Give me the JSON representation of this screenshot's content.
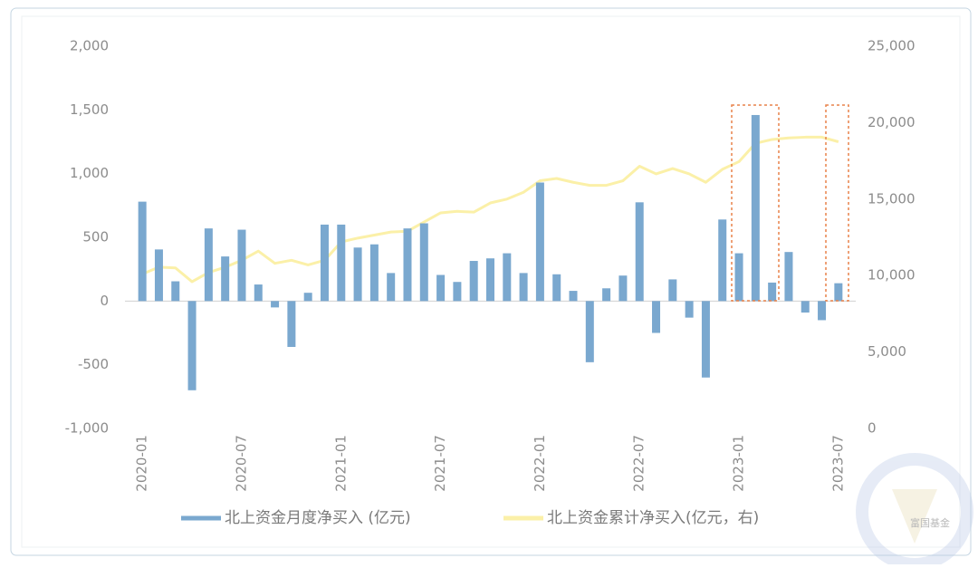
{
  "chart_data": {
    "type": "bar-line",
    "categories": [
      "2020-01",
      null,
      null,
      null,
      null,
      null,
      "2020-07",
      null,
      null,
      null,
      null,
      null,
      "2021-01",
      null,
      null,
      null,
      null,
      null,
      "2021-07",
      null,
      null,
      null,
      null,
      null,
      "2022-01",
      null,
      null,
      null,
      null,
      null,
      "2022-07",
      null,
      null,
      null,
      null,
      null,
      "2023-01",
      null,
      null,
      null,
      null,
      null,
      "2023-07"
    ],
    "series": [
      {
        "name": "北上资金月度净买入 (亿元)",
        "type": "bar",
        "color": "#7aa8cf",
        "values": [
          780,
          405,
          155,
          -700,
          570,
          350,
          560,
          130,
          -50,
          -360,
          65,
          600,
          600,
          420,
          445,
          220,
          570,
          610,
          205,
          150,
          315,
          335,
          375,
          220,
          930,
          210,
          80,
          -480,
          100,
          200,
          775,
          -250,
          170,
          -130,
          -600,
          640,
          375,
          1460,
          145,
          385,
          -90,
          -150,
          140
        ]
      },
      {
        "name": "北上资金累计净买入(亿元，右)",
        "type": "line",
        "axis": "y2",
        "color": "#fbf0a8",
        "values": [
          10100,
          10550,
          10500,
          9600,
          10200,
          10550,
          11000,
          11600,
          10800,
          11000,
          10700,
          11000,
          12200,
          12450,
          12650,
          12850,
          12900,
          13500,
          14100,
          14200,
          14150,
          14750,
          15000,
          15450,
          16200,
          16350,
          16100,
          15900,
          15900,
          16200,
          17150,
          16650,
          17000,
          16650,
          16100,
          16950,
          17450,
          18650,
          18900,
          19000,
          19050,
          19050,
          18750
        ]
      }
    ],
    "ylim": [
      -1000,
      2000
    ],
    "yticks": [
      {
        "value": -1000,
        "label": "-1,000"
      },
      -500,
      0,
      500,
      {
        "value": 1000,
        "label": "1,000"
      },
      {
        "value": 1500,
        "label": "1,500"
      },
      {
        "value": 2000,
        "label": "2,000"
      }
    ],
    "y2lim": [
      0,
      25000
    ],
    "y2ticks": [
      0,
      {
        "value": 5000,
        "label": "5,000"
      },
      {
        "value": 10000,
        "label": "10,000"
      },
      {
        "value": 15000,
        "label": "15,000"
      },
      {
        "value": 20000,
        "label": "20,000"
      },
      {
        "value": 25000,
        "label": "25,000"
      }
    ],
    "legend": "bottom",
    "watermark": "富国基金"
  }
}
